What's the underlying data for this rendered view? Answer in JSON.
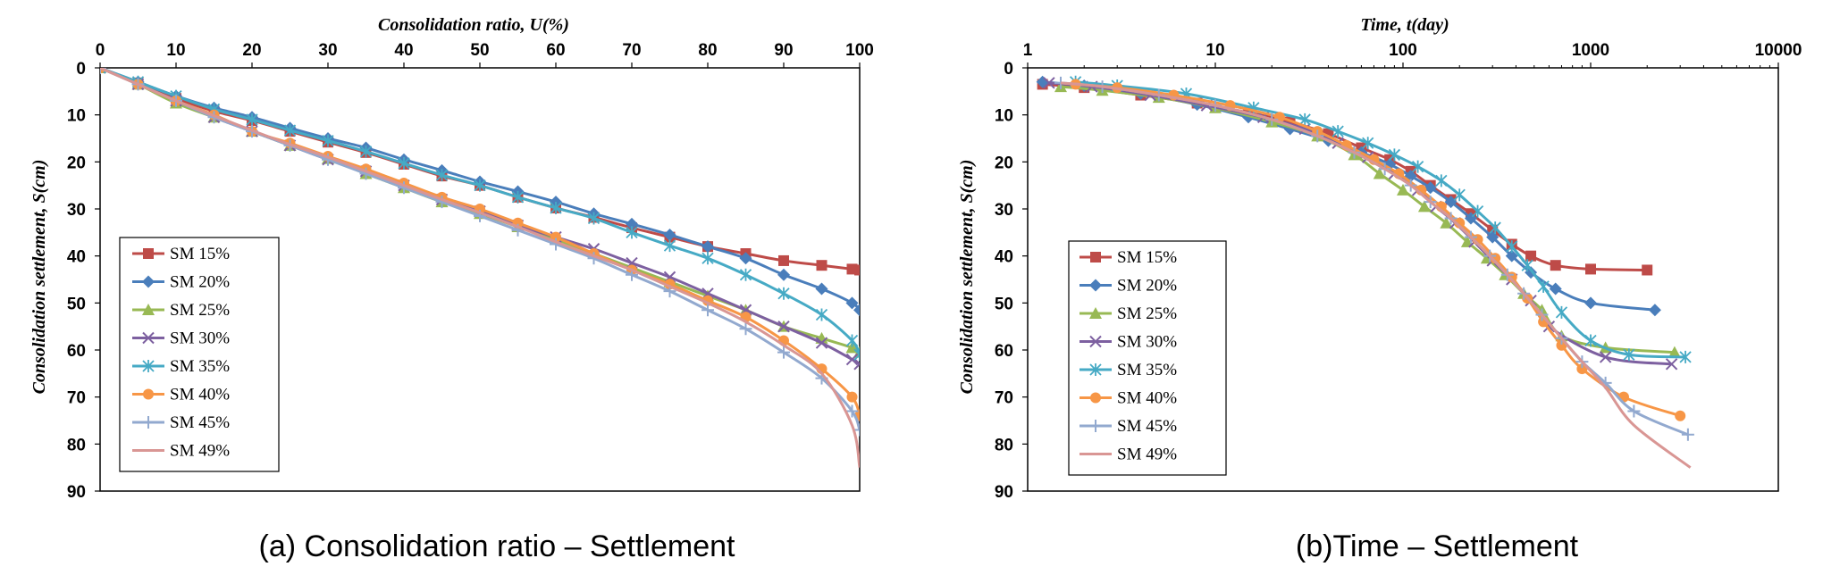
{
  "chart_data": [
    {
      "type": "line",
      "title": "",
      "caption": "(a) Consolidation ratio – Settlement",
      "xlabel": "Consolidation ratio, U(%)",
      "ylabel": "Consolidation settlement, S(cm)",
      "xlim": [
        0,
        100
      ],
      "ylim": [
        0,
        90
      ],
      "xscale": "linear",
      "x_axis_position": "top",
      "y_inverted": true,
      "x_ticks": [
        "0",
        "10",
        "20",
        "30",
        "40",
        "50",
        "60",
        "70",
        "80",
        "90",
        "100"
      ],
      "y_ticks": [
        "0",
        "10",
        "20",
        "30",
        "40",
        "50",
        "60",
        "70",
        "80",
        "90"
      ],
      "legend": {
        "placement": "bottom-left",
        "entries": [
          "SM 15%",
          "SM 20%",
          "SM 25%",
          "SM 30%",
          "SM 35%",
          "SM 40%",
          "SM 45%",
          "SM 49%"
        ]
      },
      "series": [
        {
          "name": "SM 15%",
          "color": "#be4b48",
          "marker": "square",
          "x": [
            0,
            5,
            10,
            15,
            20,
            25,
            30,
            35,
            40,
            45,
            50,
            55,
            60,
            65,
            70,
            75,
            80,
            85,
            90,
            95,
            99,
            100
          ],
          "y": [
            0,
            3.2,
            6.5,
            9.2,
            11.2,
            13.5,
            15.8,
            18,
            20.5,
            23,
            25,
            27.5,
            29.8,
            31.8,
            34,
            36,
            38,
            39.5,
            41,
            42,
            42.8,
            43
          ]
        },
        {
          "name": "SM 20%",
          "color": "#4a7ebb",
          "marker": "diamond",
          "x": [
            0,
            5,
            10,
            15,
            20,
            25,
            30,
            35,
            40,
            45,
            50,
            55,
            60,
            65,
            70,
            75,
            80,
            85,
            90,
            95,
            99,
            100
          ],
          "y": [
            0,
            3,
            6,
            8.5,
            10.5,
            12.8,
            15,
            17,
            19.5,
            21.8,
            24.2,
            26.3,
            28.5,
            31,
            33.2,
            35.5,
            38,
            40.5,
            44,
            47,
            50,
            51.5
          ]
        },
        {
          "name": "SM 25%",
          "color": "#98b954",
          "marker": "triangle",
          "x": [
            0,
            5,
            10,
            15,
            20,
            25,
            30,
            35,
            40,
            45,
            50,
            55,
            60,
            65,
            70,
            75,
            80,
            85,
            90,
            95,
            99,
            100
          ],
          "y": [
            0,
            3.5,
            7.5,
            10.5,
            13.5,
            16.5,
            19.3,
            22.5,
            25.5,
            28.5,
            31,
            33.8,
            36.5,
            39.5,
            42.5,
            45.5,
            48.5,
            51.5,
            55,
            57.5,
            59.5,
            60.5
          ]
        },
        {
          "name": "SM 30%",
          "color": "#7d60a0",
          "marker": "x",
          "x": [
            0,
            5,
            10,
            15,
            20,
            25,
            30,
            35,
            40,
            45,
            50,
            55,
            60,
            65,
            70,
            75,
            80,
            85,
            90,
            95,
            99,
            100
          ],
          "y": [
            0,
            3.5,
            7,
            10.5,
            13.5,
            16.5,
            19.5,
            22,
            25,
            28,
            30.5,
            33.5,
            36,
            38.5,
            41.5,
            44.5,
            48,
            51.5,
            55,
            58.5,
            62,
            63
          ]
        },
        {
          "name": "SM 35%",
          "color": "#46aac5",
          "marker": "star",
          "x": [
            0,
            5,
            10,
            15,
            20,
            25,
            30,
            35,
            40,
            45,
            50,
            55,
            60,
            65,
            70,
            75,
            80,
            85,
            90,
            95,
            99,
            100
          ],
          "y": [
            0,
            3,
            6,
            8.8,
            11,
            13.3,
            15.5,
            17.8,
            20.3,
            22.8,
            25,
            27.5,
            29.8,
            32,
            35,
            37.8,
            40.5,
            44,
            48,
            52.5,
            58,
            61
          ]
        },
        {
          "name": "SM 40%",
          "color": "#f79646",
          "marker": "circle",
          "x": [
            0,
            5,
            10,
            15,
            20,
            25,
            30,
            35,
            40,
            45,
            50,
            55,
            60,
            65,
            70,
            75,
            80,
            85,
            90,
            95,
            99,
            100
          ],
          "y": [
            0,
            3.5,
            7,
            10,
            13.5,
            16,
            18.8,
            21.5,
            24.5,
            27.5,
            30,
            33,
            36,
            39.5,
            43,
            46,
            49.5,
            53,
            58,
            64,
            70,
            74
          ]
        },
        {
          "name": "SM 45%",
          "color": "#92a9cf",
          "marker": "plus",
          "x": [
            0,
            5,
            10,
            15,
            20,
            25,
            30,
            35,
            40,
            45,
            50,
            55,
            60,
            65,
            70,
            75,
            80,
            85,
            90,
            95,
            99,
            100
          ],
          "y": [
            0,
            3.5,
            7,
            10.5,
            13.5,
            16.5,
            19.5,
            22.5,
            25.5,
            28.5,
            31.5,
            34.5,
            37.5,
            40.5,
            44,
            47.5,
            51.5,
            55.5,
            60.5,
            66,
            73,
            77
          ]
        },
        {
          "name": "SM 49%",
          "color": "#d99694",
          "marker": "none",
          "x": [
            0,
            5,
            10,
            15,
            20,
            25,
            30,
            35,
            40,
            45,
            50,
            55,
            60,
            65,
            70,
            75,
            80,
            85,
            90,
            95,
            99,
            100
          ],
          "y": [
            0,
            3.5,
            7,
            10.2,
            13.3,
            16.3,
            19,
            22,
            25,
            28,
            30.8,
            33.8,
            37,
            40,
            43,
            46.5,
            50,
            54,
            59,
            65,
            76,
            85
          ]
        }
      ]
    },
    {
      "type": "line",
      "title": "",
      "caption": "(b)Time – Settlement",
      "xlabel": "Time, t(day)",
      "ylabel": "Consolidation settlement, S(cm)",
      "xlim": [
        1,
        10000
      ],
      "ylim": [
        0,
        90
      ],
      "xscale": "log",
      "x_axis_position": "top",
      "y_inverted": true,
      "x_ticks": [
        "1",
        "10",
        "100",
        "1000",
        "10000"
      ],
      "y_ticks": [
        "0",
        "10",
        "20",
        "30",
        "40",
        "50",
        "60",
        "70",
        "80",
        "90"
      ],
      "legend": {
        "placement": "bottom-left",
        "entries": [
          "SM 15%",
          "SM 20%",
          "SM 25%",
          "SM 30%",
          "SM 35%",
          "SM 40%",
          "SM 45%",
          "SM 49%"
        ]
      },
      "series": [
        {
          "name": "SM 15%",
          "color": "#be4b48",
          "marker": "square",
          "x": [
            1.2,
            2,
            4,
            8,
            15,
            25,
            40,
            60,
            85,
            110,
            140,
            180,
            230,
            300,
            380,
            480,
            650,
            1000,
            2000
          ],
          "y": [
            3.5,
            4.2,
            5.8,
            7.5,
            9.5,
            11.5,
            14,
            17,
            19.5,
            22,
            25,
            28,
            31,
            34.5,
            37.5,
            40,
            42,
            42.8,
            43
          ]
        },
        {
          "name": "SM 20%",
          "color": "#4a7ebb",
          "marker": "diamond",
          "x": [
            1.2,
            2,
            4,
            8,
            15,
            25,
            40,
            60,
            85,
            110,
            140,
            180,
            230,
            300,
            380,
            480,
            650,
            1000,
            2200
          ],
          "y": [
            3,
            3.8,
            5.5,
            7.8,
            10.5,
            13,
            15.5,
            18,
            20.5,
            23,
            25.5,
            28.5,
            32,
            36,
            40,
            43.5,
            47,
            50,
            51.5
          ]
        },
        {
          "name": "SM 25%",
          "color": "#98b954",
          "marker": "triangle",
          "x": [
            1.5,
            2.5,
            5,
            10,
            20,
            35,
            55,
            75,
            100,
            130,
            170,
            220,
            280,
            350,
            440,
            550,
            700,
            1200,
            2800
          ],
          "y": [
            4,
            4.8,
            6.3,
            8.5,
            11.5,
            14.5,
            18.5,
            22.5,
            26,
            29.5,
            33,
            37,
            40.5,
            44,
            48,
            51.5,
            57,
            59.5,
            60.5
          ]
        },
        {
          "name": "SM 30%",
          "color": "#7d60a0",
          "marker": "x",
          "x": [
            1.3,
            2.2,
            4.5,
            9,
            18,
            30,
            45,
            65,
            90,
            120,
            150,
            190,
            240,
            300,
            380,
            480,
            600,
            1200,
            2700
          ],
          "y": [
            3.2,
            4,
            5.8,
            8,
            10.5,
            13,
            16,
            19,
            22.5,
            26,
            29.5,
            33,
            37,
            41,
            45,
            49.5,
            55,
            61.5,
            63
          ]
        },
        {
          "name": "SM 35%",
          "color": "#46aac5",
          "marker": "star",
          "x": [
            1.8,
            3,
            7,
            16,
            30,
            45,
            65,
            90,
            120,
            160,
            200,
            250,
            310,
            380,
            460,
            560,
            700,
            1000,
            1600,
            3200
          ],
          "y": [
            3,
            3.8,
            5.5,
            8.5,
            11,
            13.5,
            16,
            18.5,
            21,
            24,
            27,
            30.5,
            34,
            38,
            42,
            46.5,
            52,
            58,
            61,
            61.5
          ]
        },
        {
          "name": "SM 40%",
          "color": "#f79646",
          "marker": "circle",
          "x": [
            1.8,
            3,
            6,
            12,
            22,
            35,
            50,
            70,
            95,
            125,
            160,
            200,
            250,
            310,
            380,
            460,
            560,
            700,
            900,
            1500,
            3000
          ],
          "y": [
            3.5,
            4.2,
            5.8,
            8,
            10.5,
            13.5,
            16.5,
            19.5,
            22.5,
            26,
            29.5,
            33,
            36.5,
            40.5,
            44.5,
            49,
            54,
            59,
            64,
            70,
            74
          ]
        },
        {
          "name": "SM 45%",
          "color": "#92a9cf",
          "marker": "plus",
          "x": [
            1.5,
            2.5,
            5,
            10,
            20,
            35,
            55,
            80,
            110,
            140,
            180,
            230,
            290,
            360,
            440,
            550,
            700,
            900,
            1200,
            1700,
            3300
          ],
          "y": [
            3.2,
            4,
            5.8,
            8,
            11,
            14.5,
            18,
            21.5,
            25,
            28.5,
            32,
            36,
            40,
            44,
            48,
            52.5,
            57.5,
            62.5,
            67,
            73,
            78
          ]
        },
        {
          "name": "SM 49%",
          "color": "#d99694",
          "marker": "none",
          "x": [
            1.5,
            2.5,
            5,
            10,
            20,
            35,
            55,
            80,
            110,
            140,
            180,
            230,
            290,
            360,
            440,
            550,
            700,
            900,
            1200,
            1700,
            3400
          ],
          "y": [
            3.2,
            4,
            5.8,
            8,
            11,
            14.5,
            18,
            21.5,
            25,
            28.5,
            32,
            36,
            40,
            44,
            48,
            52.5,
            57.5,
            62.5,
            68,
            76,
            85
          ]
        }
      ]
    }
  ]
}
